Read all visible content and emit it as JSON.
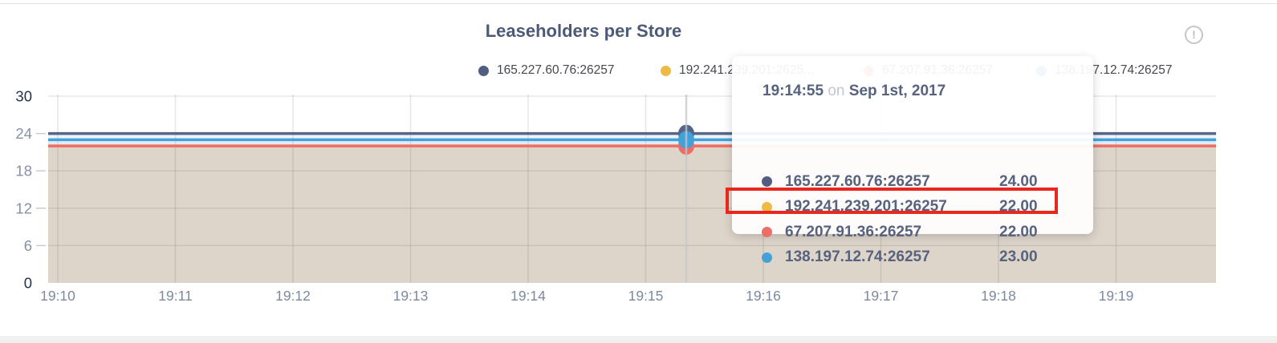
{
  "panel": {
    "title": "Leaseholders per Store",
    "info_glyph": "!"
  },
  "legend": {
    "items": [
      {
        "label": "165.227.60.76:26257",
        "color": "#505f80"
      },
      {
        "label": "192.241.239.201:2625...",
        "color": "#efba44"
      },
      {
        "label": "67.207.91.36:26257",
        "color": "#ec6e66"
      },
      {
        "label": "138.197.12.74:26257",
        "color": "#42a1d9"
      }
    ]
  },
  "tooltip": {
    "time": "19:14:55",
    "on_word": "on",
    "date": "Sep 1st, 2017",
    "rows": [
      {
        "label": "165.227.60.76:26257",
        "value": "24.00",
        "color": "#505f80",
        "highlighted": false
      },
      {
        "label": "192.241.239.201:26257",
        "value": "22.00",
        "color": "#efba44",
        "highlighted": false
      },
      {
        "label": "67.207.91.36:26257",
        "value": "22.00",
        "color": "#ec6e66",
        "highlighted": false
      },
      {
        "label": "138.197.12.74:26257",
        "value": "23.00",
        "color": "#42a1d9",
        "highlighted": true
      }
    ],
    "highlight_color": "#e8271d"
  },
  "chart_data": {
    "type": "line",
    "title": "Leaseholders per Store",
    "x_ticks": [
      "19:10",
      "19:11",
      "19:12",
      "19:13",
      "19:14",
      "19:15",
      "19:16",
      "19:17",
      "19:18",
      "19:19"
    ],
    "y_ticks": [
      0,
      6,
      12,
      18,
      24,
      30
    ],
    "ylim": [
      0,
      30
    ],
    "xlabel": "",
    "ylabel": "",
    "grid": true,
    "legend_position": "top",
    "series": [
      {
        "name": "165.227.60.76:26257",
        "color": "#556487",
        "value": 24
      },
      {
        "name": "192.241.239.201:26257",
        "color": "#efba44",
        "value": 22
      },
      {
        "name": "67.207.91.36:26257",
        "color": "#ec6e66",
        "value": 22
      },
      {
        "name": "138.197.12.74:26257",
        "color": "#42a1d9",
        "value": 23
      }
    ],
    "hover": {
      "time": "19:14:55",
      "date": "Sep 1st, 2017",
      "values": [
        24,
        22,
        22,
        23
      ]
    },
    "area_fill": "#ddd5ca"
  }
}
